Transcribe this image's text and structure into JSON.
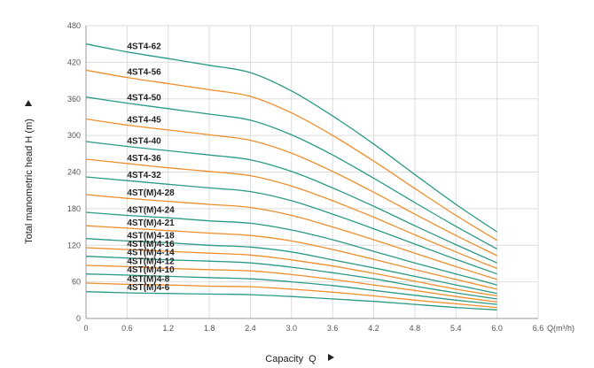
{
  "chart_data": {
    "type": "line",
    "title": "",
    "xlabel": "Capacity  Q",
    "ylabel": "Total manometric head H (m)",
    "x_unit_label": "Q(m³/h)",
    "xlim": [
      0,
      6.6
    ],
    "ylim": [
      0,
      480
    ],
    "x_ticks": [
      "0",
      "0.6",
      "1.2",
      "1.8",
      "2.4",
      "3.0",
      "3.6",
      "4.2",
      "4.8",
      "5.4",
      "6.0",
      "6.6"
    ],
    "y_ticks": [
      "0",
      "60",
      "120",
      "180",
      "240",
      "300",
      "360",
      "420",
      "480"
    ],
    "grid": true,
    "colors": {
      "teal": "#2a9a86",
      "orange": "#ef8e2c",
      "grid": "#dddddd",
      "axis": "#999999"
    },
    "x": [
      0,
      0.6,
      1.2,
      1.8,
      2.4,
      3.0,
      3.6,
      4.2,
      4.8,
      5.4,
      6.0
    ],
    "series": [
      {
        "name": "4ST4-62",
        "color": "teal",
        "values": [
          450,
          437,
          426,
          415,
          403,
          373,
          332,
          286,
          236,
          187,
          142
        ]
      },
      {
        "name": "4ST4-56",
        "color": "orange",
        "values": [
          407,
          395,
          385,
          375,
          364,
          337,
          300,
          258,
          213,
          169,
          128
        ]
      },
      {
        "name": "4ST4-50",
        "color": "teal",
        "values": [
          363,
          353,
          344,
          335,
          325,
          301,
          268,
          230,
          190,
          151,
          114
        ]
      },
      {
        "name": "4ST4-45",
        "color": "orange",
        "values": [
          327,
          317,
          309,
          301,
          292,
          271,
          241,
          207,
          171,
          136,
          103
        ]
      },
      {
        "name": "4ST4-40",
        "color": "teal",
        "values": [
          290,
          282,
          275,
          268,
          260,
          241,
          214,
          184,
          152,
          121,
          91
        ]
      },
      {
        "name": "4ST4-36",
        "color": "orange",
        "values": [
          261,
          254,
          247,
          241,
          234,
          217,
          193,
          166,
          137,
          109,
          82
        ]
      },
      {
        "name": "4ST4-32",
        "color": "teal",
        "values": [
          232,
          226,
          220,
          214,
          208,
          193,
          171,
          147,
          122,
          97,
          73
        ]
      },
      {
        "name": "4ST(M)4-28",
        "color": "orange",
        "values": [
          203,
          197,
          192,
          187,
          182,
          169,
          150,
          129,
          107,
          85,
          64
        ]
      },
      {
        "name": "4ST(M)4-24",
        "color": "teal",
        "values": [
          174,
          169,
          165,
          160,
          156,
          145,
          129,
          110,
          91,
          73,
          55
        ]
      },
      {
        "name": "4ST(M)4-21",
        "color": "orange",
        "values": [
          152,
          148,
          144,
          140,
          136,
          127,
          113,
          97,
          80,
          64,
          48
        ]
      },
      {
        "name": "4ST(M)4-18",
        "color": "teal",
        "values": [
          131,
          127,
          124,
          120,
          117,
          109,
          96,
          83,
          69,
          55,
          41
        ]
      },
      {
        "name": "4ST(M)4-16",
        "color": "orange",
        "values": [
          116,
          113,
          110,
          107,
          104,
          96,
          86,
          74,
          61,
          48,
          37
        ]
      },
      {
        "name": "4ST(M)4-14",
        "color": "teal",
        "values": [
          102,
          99,
          96,
          94,
          91,
          84,
          75,
          65,
          53,
          42,
          32
        ]
      },
      {
        "name": "4ST(M)4-12",
        "color": "orange",
        "values": [
          87,
          85,
          82,
          80,
          78,
          72,
          64,
          55,
          46,
          36,
          27
        ]
      },
      {
        "name": "4ST(M)4-10",
        "color": "teal",
        "values": [
          73,
          71,
          69,
          67,
          65,
          60,
          54,
          46,
          38,
          30,
          23
        ]
      },
      {
        "name": "4ST(M)4-8",
        "color": "orange",
        "values": [
          58,
          56,
          55,
          53,
          52,
          48,
          43,
          37,
          30,
          24,
          18
        ]
      },
      {
        "name": "4ST(M)4-6",
        "color": "teal",
        "values": [
          44,
          42,
          41,
          40,
          39,
          36,
          32,
          28,
          23,
          18,
          14
        ]
      }
    ]
  }
}
